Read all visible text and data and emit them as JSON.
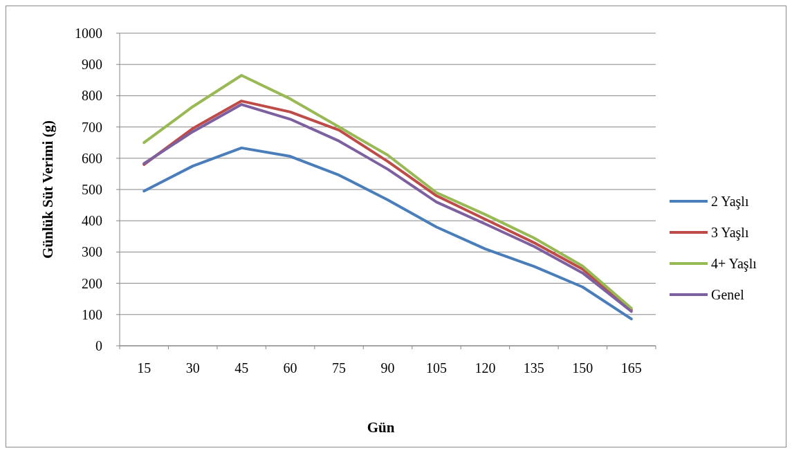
{
  "chart_data": {
    "type": "line",
    "xlabel": "Gün",
    "ylabel": "Günlük Süt Verimi (g)",
    "categories": [
      "15",
      "30",
      "45",
      "60",
      "75",
      "90",
      "105",
      "120",
      "135",
      "150",
      "165"
    ],
    "ylim": [
      0,
      1000
    ],
    "yticks": [
      0,
      100,
      200,
      300,
      400,
      500,
      600,
      700,
      800,
      900,
      1000
    ],
    "grid": "y",
    "legend": "right",
    "marker": "none",
    "series": [
      {
        "name": "2 Yaşlı",
        "color": "#4a7ebb",
        "values": [
          495,
          575,
          633,
          606,
          546,
          467,
          380,
          310,
          254,
          188,
          86
        ]
      },
      {
        "name": "3 Yaşlı",
        "color": "#be4b48",
        "values": [
          580,
          695,
          783,
          748,
          690,
          590,
          480,
          405,
          330,
          245,
          115
        ]
      },
      {
        "name": "4+ Yaşlı",
        "color": "#98b954",
        "values": [
          650,
          765,
          865,
          790,
          700,
          610,
          490,
          420,
          345,
          255,
          120
        ]
      },
      {
        "name": "Genel",
        "color": "#7d60a0",
        "values": [
          583,
          685,
          772,
          725,
          655,
          565,
          460,
          390,
          318,
          233,
          110
        ]
      }
    ]
  }
}
